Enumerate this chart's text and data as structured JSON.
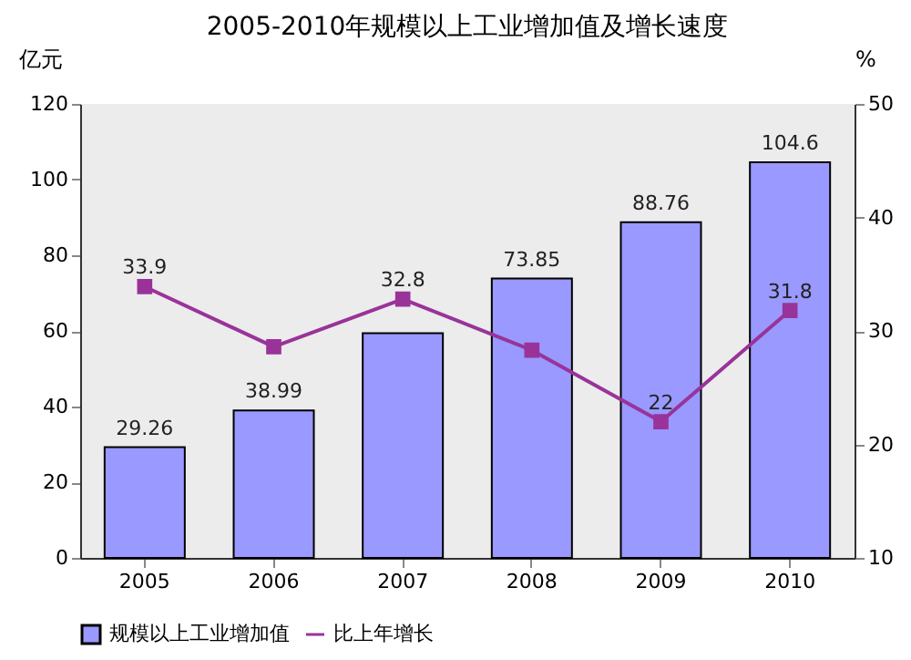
{
  "chart_data": {
    "type": "bar",
    "title": "2005-2010年规模以上工业增加值及增长速度",
    "categories": [
      "2005",
      "2006",
      "2007",
      "2008",
      "2009",
      "2010"
    ],
    "ylabel": "亿元",
    "y2label": "%",
    "ylim": [
      0,
      120
    ],
    "yticks": [
      0,
      20,
      40,
      60,
      80,
      100,
      120
    ],
    "y2lim": [
      10,
      50
    ],
    "y2ticks": [
      10,
      20,
      30,
      40,
      50
    ],
    "series": [
      {
        "name": "规模以上工业增加值",
        "color": "#9999ff",
        "values": [
          29.26,
          38.99,
          59.4,
          73.85,
          88.76,
          104.6
        ],
        "value_labels": [
          "29.26",
          "38.99",
          null,
          "73.85",
          "88.76",
          "104.6"
        ]
      },
      {
        "name": "比上年增长",
        "type": "line",
        "axis": "y2",
        "color": "#993399",
        "marker": "square",
        "values": [
          33.9,
          28.6,
          32.8,
          28.3,
          22,
          31.8
        ],
        "value_labels": [
          "33.9",
          null,
          "32.8",
          null,
          "22",
          "31.8"
        ]
      }
    ],
    "grid": false,
    "legend": "bottom"
  }
}
